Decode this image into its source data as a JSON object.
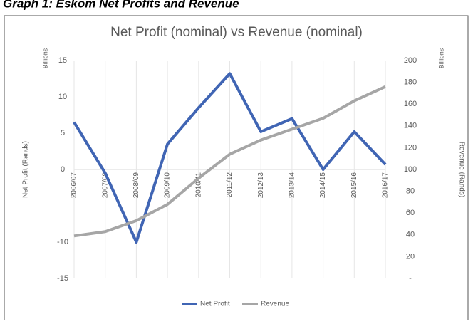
{
  "heading": "Graph 1: Eskom Net Profits and Revenue",
  "chart_data": {
    "type": "line",
    "title": "Net Profit (nominal) vs Revenue (nominal)",
    "y_unit": "Billions",
    "y2_unit": "Billions",
    "ylabel": "Net Profit (Rands)",
    "y2label": "Revenue (Rands)",
    "categories": [
      "2006/07",
      "2007/08",
      "2008/09",
      "2009/10",
      "2010/11",
      "2011/12",
      "2012/13",
      "2013/14",
      "2014/15",
      "2015/16",
      "2016/17"
    ],
    "series": [
      {
        "name": "Net Profit",
        "color": "#4065b4",
        "values": [
          6.5,
          -0.5,
          -10,
          3.5,
          8.5,
          13.2,
          5.2,
          7,
          0,
          5.2,
          0.7
        ]
      },
      {
        "name": "Revenue",
        "color": "#a6a6a6",
        "axis": "y2",
        "values": [
          39,
          43,
          53,
          68,
          92,
          114,
          127,
          137,
          147,
          163,
          176
        ]
      }
    ],
    "ylim": [
      -15,
      15
    ],
    "yticks": [
      -15,
      -10,
      0,
      5,
      10,
      15
    ],
    "y2lim": [
      0,
      200
    ],
    "y2ticks": [
      {
        "value": 0,
        "label": "-"
      },
      20,
      40,
      60,
      80,
      100,
      120,
      140,
      160,
      180,
      200
    ],
    "grid": true,
    "legend": "bottom"
  }
}
